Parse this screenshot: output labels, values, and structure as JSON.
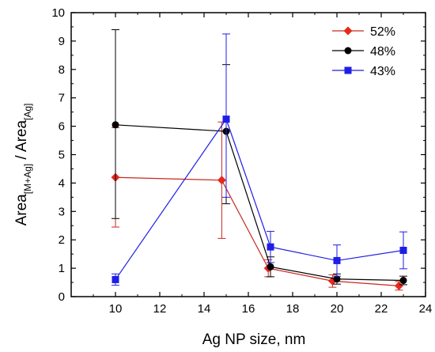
{
  "chart_data": {
    "type": "line",
    "title": "",
    "xlabel": "Ag NP size, nm",
    "ylabel": {
      "prefix1": "Area",
      "sub1": "[M+Ag]",
      "separator": " / Area",
      "sub2": "[Ag]"
    },
    "xlim": [
      8,
      24
    ],
    "ylim": [
      0,
      10
    ],
    "xticks": [
      "10",
      "12",
      "14",
      "16",
      "18",
      "20",
      "22",
      "24"
    ],
    "yticks": [
      "0",
      "1",
      "2",
      "3",
      "4",
      "5",
      "6",
      "7",
      "8",
      "9",
      "10"
    ],
    "grid": false,
    "legend_position": "top-right",
    "series": [
      {
        "name": "52%",
        "color": "#c8281e",
        "marker": "diamond",
        "marker_color": "#e8281e",
        "x": [
          10,
          14.8,
          16.9,
          19.8,
          22.8
        ],
        "y": [
          4.2,
          4.1,
          1.0,
          0.55,
          0.38
        ],
        "err_low": [
          1.75,
          2.05,
          0.3,
          0.22,
          0.15
        ],
        "err_high": [
          1.75,
          2.05,
          0.3,
          0.22,
          0.15
        ]
      },
      {
        "name": "48%",
        "color": "#000000",
        "marker": "circle",
        "marker_color": "#000000",
        "x": [
          10,
          15,
          17,
          20,
          23
        ],
        "y": [
          6.05,
          5.82,
          1.05,
          0.62,
          0.57
        ],
        "err_low": [
          3.3,
          2.55,
          0.35,
          0.18,
          0.15
        ],
        "err_high": [
          3.35,
          2.35,
          0.35,
          0.18,
          0.15
        ]
      },
      {
        "name": "43%",
        "color": "#1e1ee6",
        "marker": "square",
        "marker_color": "#1e1ee6",
        "x": [
          10,
          15,
          17,
          20,
          23
        ],
        "y": [
          0.6,
          6.25,
          1.75,
          1.27,
          1.63
        ],
        "err_low": [
          0.2,
          2.75,
          0.55,
          0.55,
          0.65
        ],
        "err_high": [
          0.2,
          3.0,
          0.55,
          0.55,
          0.65
        ]
      }
    ]
  }
}
